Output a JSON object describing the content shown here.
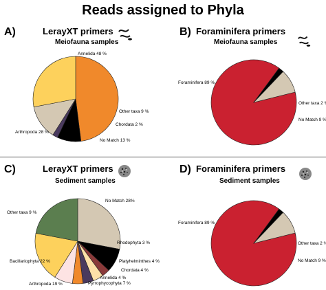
{
  "page_title": "Reads assigned to Phyla",
  "panels": [
    {
      "letter": "A)",
      "title": "LerayXT primers",
      "subtitle": "Meiofauna samples",
      "icon": "worm-icon"
    },
    {
      "letter": "B)",
      "title": "Foraminifera primers",
      "subtitle": "Meiofauna samples",
      "icon": "worm-icon"
    },
    {
      "letter": "C)",
      "title": "LerayXT primers",
      "subtitle": "Sediment samples",
      "icon": "sediment-icon"
    },
    {
      "letter": "D)",
      "title": "Foraminifera primers",
      "subtitle": "Sediment samples",
      "icon": "sediment-icon"
    }
  ],
  "chart_data": [
    {
      "type": "pie",
      "title": "LerayXT primers - Meiofauna samples",
      "slices": [
        {
          "label": "Annelida 48 %",
          "value": 48,
          "color": "#f0892b"
        },
        {
          "label": "Other taxa 9 %",
          "value": 9,
          "color": "#000000"
        },
        {
          "label": "Chordata 2 %",
          "value": 2,
          "color": "#4a3a5e"
        },
        {
          "label": "No Match 13 %",
          "value": 13,
          "color": "#d4c8b3"
        },
        {
          "label": "Arthropoda 28 %",
          "value": 28,
          "color": "#fdd15c"
        }
      ]
    },
    {
      "type": "pie",
      "title": "Foraminifera primers - Meiofauna samples",
      "slices": [
        {
          "label": "Foraminifera 89 %",
          "value": 89,
          "color": "#ca2130"
        },
        {
          "label": "Other taxa 2 %",
          "value": 2,
          "color": "#000000"
        },
        {
          "label": "No Match 9 %",
          "value": 9,
          "color": "#d4c8b3"
        }
      ]
    },
    {
      "type": "pie",
      "title": "LerayXT primers - Sediment samples",
      "slices": [
        {
          "label": "No Match 28%",
          "value": 28,
          "color": "#d4c8b3"
        },
        {
          "label": "Other taxa 9 %",
          "value": 9,
          "color": "#000000"
        },
        {
          "label": "Rhodophyta 3 %",
          "value": 3,
          "color": "#8a3a3a"
        },
        {
          "label": "Platyhelminthes 4 %",
          "value": 4,
          "color": "#fde0a8"
        },
        {
          "label": "Chordata 4 %",
          "value": 4,
          "color": "#4a3a5e"
        },
        {
          "label": "Annelida 4 %",
          "value": 4,
          "color": "#f0892b"
        },
        {
          "label": "Pyrrophycophyta 7 %",
          "value": 7,
          "color": "#fde3e3"
        },
        {
          "label": "Arthropoda 19 %",
          "value": 19,
          "color": "#fdd15c"
        },
        {
          "label": "Bacillariophyta 22 %",
          "value": 22,
          "color": "#5b7e4f"
        }
      ]
    },
    {
      "type": "pie",
      "title": "Foraminifera primers - Sediment samples",
      "slices": [
        {
          "label": "Foraminifera 89 %",
          "value": 89,
          "color": "#ca2130"
        },
        {
          "label": "Other taxa 2 %",
          "value": 2,
          "color": "#000000"
        },
        {
          "label": "No Match 9 %",
          "value": 9,
          "color": "#d4c8b3"
        }
      ]
    }
  ]
}
